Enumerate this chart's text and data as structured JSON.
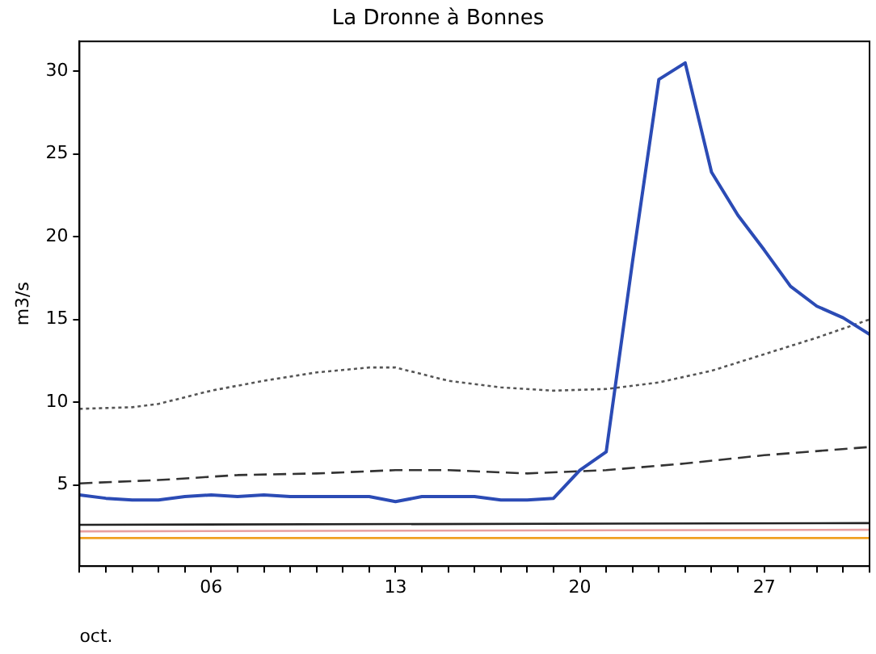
{
  "chart_data": {
    "type": "line",
    "title": "La Dronne à Bonnes",
    "xlabel": "oct.",
    "ylabel": "m3/s",
    "xlim": [
      1,
      31
    ],
    "ylim": [
      0.1,
      31.8
    ],
    "xticks": [
      {
        "value": 1,
        "label": null
      },
      {
        "value": 2,
        "label": null
      },
      {
        "value": 3,
        "label": null
      },
      {
        "value": 4,
        "label": null
      },
      {
        "value": 5,
        "label": null
      },
      {
        "value": 6,
        "label": "06"
      },
      {
        "value": 7,
        "label": null
      },
      {
        "value": 8,
        "label": null
      },
      {
        "value": 9,
        "label": null
      },
      {
        "value": 10,
        "label": null
      },
      {
        "value": 11,
        "label": null
      },
      {
        "value": 12,
        "label": null
      },
      {
        "value": 13,
        "label": "13"
      },
      {
        "value": 14,
        "label": null
      },
      {
        "value": 15,
        "label": null
      },
      {
        "value": 16,
        "label": null
      },
      {
        "value": 17,
        "label": null
      },
      {
        "value": 18,
        "label": null
      },
      {
        "value": 19,
        "label": null
      },
      {
        "value": 20,
        "label": "20"
      },
      {
        "value": 21,
        "label": null
      },
      {
        "value": 22,
        "label": null
      },
      {
        "value": 23,
        "label": null
      },
      {
        "value": 24,
        "label": null
      },
      {
        "value": 25,
        "label": null
      },
      {
        "value": 26,
        "label": null
      },
      {
        "value": 27,
        "label": "27"
      },
      {
        "value": 28,
        "label": null
      },
      {
        "value": 29,
        "label": null
      },
      {
        "value": 30,
        "label": null
      },
      {
        "value": 31,
        "label": null
      }
    ],
    "yticks": [
      5,
      10,
      15,
      20,
      25,
      30
    ],
    "grid": false,
    "legend": false,
    "marker": "none",
    "series": [
      {
        "color": "#2b4bb5",
        "line_style": "solid",
        "x": [
          1,
          2,
          3,
          4,
          5,
          6,
          7,
          8,
          9,
          10,
          11,
          12,
          13,
          14,
          15,
          16,
          17,
          18,
          19,
          20,
          21,
          22,
          23,
          24,
          25,
          26,
          27,
          28,
          29,
          30,
          31
        ],
        "values": [
          4.4,
          4.2,
          4.1,
          4.1,
          4.3,
          4.4,
          4.3,
          4.4,
          4.3,
          4.3,
          4.3,
          4.3,
          4.0,
          4.3,
          4.3,
          4.3,
          4.1,
          4.1,
          4.2,
          5.9,
          7.0,
          18.5,
          29.5,
          30.5,
          23.9,
          21.3,
          19.2,
          17.0,
          15.8,
          15.1,
          14.1
        ]
      },
      {
        "color": "#555555",
        "line_style": "dotted",
        "x": [
          1,
          3,
          4,
          6,
          8,
          10,
          12,
          13,
          15,
          17,
          19,
          21,
          23,
          25,
          27,
          29,
          31
        ],
        "values": [
          9.6,
          9.7,
          9.9,
          10.7,
          11.3,
          11.8,
          12.1,
          12.1,
          11.3,
          10.9,
          10.7,
          10.8,
          11.2,
          11.9,
          12.9,
          13.9,
          15.0
        ]
      },
      {
        "color": "#333333",
        "line_style": "dashed",
        "x": [
          1,
          4,
          7,
          10,
          13,
          15,
          18,
          21,
          24,
          27,
          31
        ],
        "values": [
          5.1,
          5.3,
          5.6,
          5.7,
          5.9,
          5.9,
          5.7,
          5.9,
          6.3,
          6.8,
          7.3
        ]
      },
      {
        "color": "#222222",
        "line_style": "solid",
        "x": [
          1,
          31
        ],
        "values": [
          2.6,
          2.7
        ]
      },
      {
        "color": "#e8a0a0",
        "line_style": "solid",
        "x": [
          1,
          31
        ],
        "values": [
          2.2,
          2.3
        ]
      },
      {
        "color": "#f0a020",
        "line_style": "solid",
        "x": [
          1,
          31
        ],
        "values": [
          1.8,
          1.8
        ]
      }
    ]
  }
}
